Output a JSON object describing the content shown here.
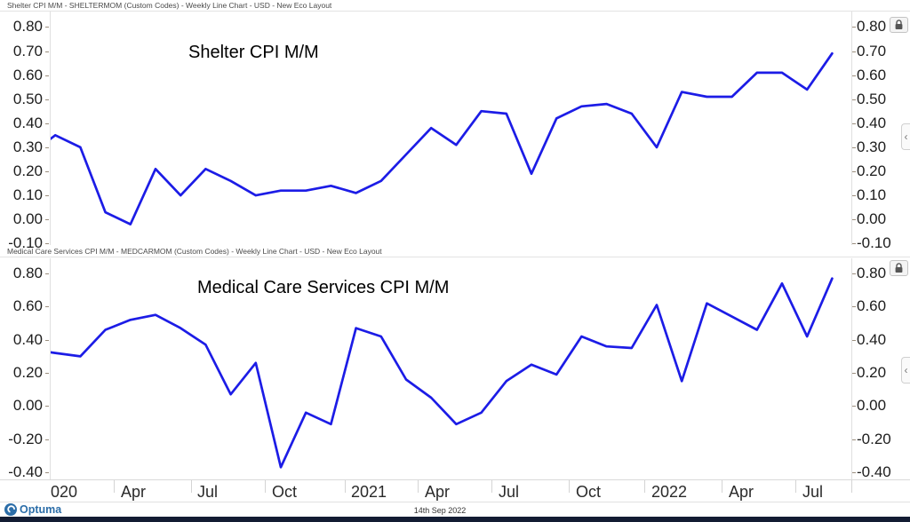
{
  "panels": [
    {
      "header": "Shelter CPI M/M - SHELTERMOM (Custom Codes) - Weekly Line Chart - USD - New Eco Layout",
      "annotation": "Shelter CPI M/M"
    },
    {
      "header": "Medical Care Services CPI M/M - MEDCARMOM (Custom Codes) - Weekly Line Chart - USD - New Eco Layout",
      "annotation": "Medical Care Services CPI M/M"
    }
  ],
  "x_axis": {
    "labels": [
      "020",
      "Apr",
      "Jul",
      "Oct",
      "2021",
      "Apr",
      "Jul",
      "Oct",
      "2022",
      "Apr",
      "Jul"
    ]
  },
  "icons": {
    "lock": "padlock",
    "collapse_glyph": "‹"
  },
  "footer": {
    "brand": "Optuma",
    "date": "14th Sep 2022"
  },
  "colors": {
    "line": "#1c1ce6",
    "brand_blue": "#2b6da8",
    "bottom_bar": "#131c33"
  },
  "chart_data": [
    {
      "type": "line",
      "title": "Shelter CPI M/M",
      "code": "SHELTERMOM",
      "x": [
        "Dec 2019",
        "Jan 2020",
        "Feb 2020",
        "Mar 2020",
        "Apr 2020",
        "May 2020",
        "Jun 2020",
        "Jul 2020",
        "Aug 2020",
        "Sep 2020",
        "Oct 2020",
        "Nov 2020",
        "Dec 2020",
        "Jan 2021",
        "Feb 2021",
        "Mar 2021",
        "Apr 2021",
        "May 2021",
        "Jun 2021",
        "Jul 2021",
        "Aug 2021",
        "Sep 2021",
        "Oct 2021",
        "Nov 2021",
        "Dec 2021",
        "Jan 2022",
        "Feb 2022",
        "Mar 2022",
        "Apr 2022",
        "May 2022",
        "Jun 2022",
        "Jul 2022",
        "Aug 2022"
      ],
      "values": [
        0.27,
        0.35,
        0.3,
        0.03,
        -0.02,
        0.21,
        0.1,
        0.21,
        0.16,
        0.1,
        0.12,
        0.12,
        0.14,
        0.11,
        0.16,
        0.27,
        0.38,
        0.31,
        0.45,
        0.44,
        0.19,
        0.42,
        0.47,
        0.48,
        0.44,
        0.3,
        0.53,
        0.51,
        0.51,
        0.61,
        0.61,
        0.54,
        0.69
      ],
      "ylim": [
        -0.1,
        0.8
      ],
      "y_tick_values": [
        0.8,
        0.7,
        0.6,
        0.5,
        0.4,
        0.3,
        0.2,
        0.1,
        0.0,
        -0.1
      ],
      "y_tick_labels": [
        "0.80",
        "0.70",
        "0.60",
        "0.50",
        "0.40",
        "0.30",
        "0.20",
        "0.10",
        "0.00",
        "-0.10"
      ],
      "grid": false,
      "legend": "none"
    },
    {
      "type": "line",
      "title": "Medical Care Services CPI M/M",
      "code": "MEDCARMOM",
      "x": [
        "Dec 2019",
        "Jan 2020",
        "Feb 2020",
        "Mar 2020",
        "Apr 2020",
        "May 2020",
        "Jun 2020",
        "Jul 2020",
        "Aug 2020",
        "Sep 2020",
        "Oct 2020",
        "Nov 2020",
        "Dec 2020",
        "Jan 2021",
        "Feb 2021",
        "Mar 2021",
        "Apr 2021",
        "May 2021",
        "Jun 2021",
        "Jul 2021",
        "Aug 2021",
        "Sep 2021",
        "Oct 2021",
        "Nov 2021",
        "Dec 2021",
        "Jan 2022",
        "Feb 2022",
        "Mar 2022",
        "Apr 2022",
        "May 2022",
        "Jun 2022",
        "Jul 2022",
        "Aug 2022"
      ],
      "values": [
        0.34,
        0.32,
        0.3,
        0.46,
        0.52,
        0.55,
        0.47,
        0.37,
        0.07,
        0.26,
        -0.37,
        -0.04,
        -0.11,
        0.47,
        0.42,
        0.16,
        0.05,
        -0.11,
        -0.04,
        0.15,
        0.25,
        0.19,
        0.42,
        0.36,
        0.35,
        0.61,
        0.15,
        0.62,
        0.54,
        0.46,
        0.74,
        0.42,
        0.77
      ],
      "ylim": [
        -0.4,
        0.8
      ],
      "y_tick_values": [
        0.8,
        0.6,
        0.4,
        0.2,
        0.0,
        -0.2,
        -0.4
      ],
      "y_tick_labels": [
        "0.80",
        "0.60",
        "0.40",
        "0.20",
        "0.00",
        "-0.20",
        "-0.40"
      ],
      "grid": false,
      "legend": "none"
    }
  ]
}
